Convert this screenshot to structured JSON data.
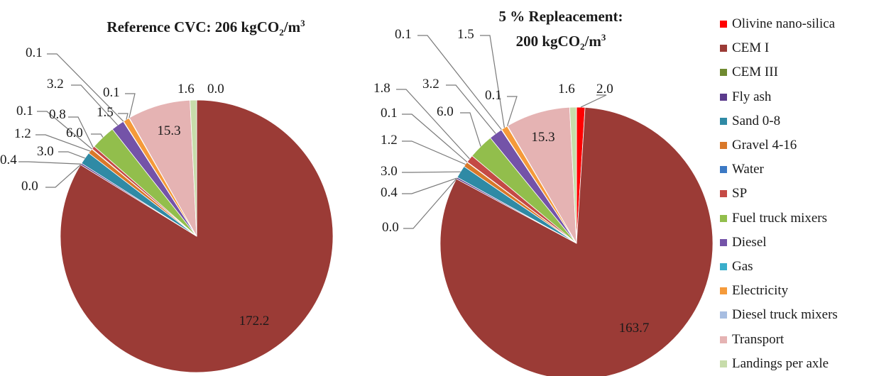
{
  "legend": [
    {
      "label": "Olivine nano-silica",
      "color": "#ff0000"
    },
    {
      "label": "CEM I",
      "color": "#9b3b36"
    },
    {
      "label": "CEM III",
      "color": "#6f8a30"
    },
    {
      "label": "Fly ash",
      "color": "#5b3b8c"
    },
    {
      "label": "Sand 0-8",
      "color": "#2f8aa5"
    },
    {
      "label": "Gravel 4-16",
      "color": "#d9782a"
    },
    {
      "label": "Water",
      "color": "#3c79c4"
    },
    {
      "label": "SP",
      "color": "#c44a45"
    },
    {
      "label": "Fuel truck mixers",
      "color": "#92be4c"
    },
    {
      "label": "Diesel",
      "color": "#7453a8"
    },
    {
      "label": "Gas",
      "color": "#3aaecb"
    },
    {
      "label": "Electricity",
      "color": "#f59a3a"
    },
    {
      "label": "Diesel truck mixers",
      "color": "#a7bde1"
    },
    {
      "label": "Transport",
      "color": "#e5b3b3"
    },
    {
      "label": "Landings per axle",
      "color": "#c7dcaa"
    }
  ],
  "chart_data": [
    {
      "type": "pie",
      "title_main": "Reference CVC: 206 kgCO",
      "title_sub": "2",
      "title_unit": "/m",
      "title_sup": "3",
      "categories": [
        "Olivine nano-silica",
        "CEM I",
        "CEM III",
        "Fly ash",
        "Sand 0-8",
        "Gravel 4-16",
        "Water",
        "SP",
        "Fuel truck mixers",
        "Diesel",
        "Gas",
        "Electricity",
        "Diesel truck mixers",
        "Transport",
        "Landings per axle"
      ],
      "values": [
        0.0,
        172.2,
        0.0,
        0.4,
        3.0,
        1.2,
        0.1,
        0.8,
        6.0,
        3.2,
        0.1,
        1.5,
        0.1,
        15.3,
        1.6
      ],
      "labels": [
        "0.0",
        "172.2",
        "0.0",
        "0.4",
        "3.0",
        "1.2",
        "0.1",
        "0.8",
        "6.0",
        "3.2",
        "0.1",
        "1.5",
        "0.1",
        "15.3",
        "1.6"
      ],
      "total": "206"
    },
    {
      "type": "pie",
      "title_line1": "5 % Repleacement:",
      "title_main": "200 kgCO",
      "title_sub": "2",
      "title_unit": "/m",
      "title_sup": "3",
      "categories": [
        "Olivine nano-silica",
        "CEM I",
        "CEM III",
        "Fly ash",
        "Sand 0-8",
        "Gravel 4-16",
        "Water",
        "SP",
        "Fuel truck mixers",
        "Diesel",
        "Gas",
        "Electricity",
        "Diesel truck mixers",
        "Transport",
        "Landings per axle"
      ],
      "values": [
        2.0,
        163.7,
        0.0,
        0.4,
        3.0,
        1.2,
        0.1,
        1.8,
        6.0,
        3.2,
        0.1,
        1.5,
        0.1,
        15.3,
        1.6
      ],
      "labels": [
        "2.0",
        "163.7",
        "0.0",
        "0.4",
        "3.0",
        "1.2",
        "0.1",
        "1.8",
        "6.0",
        "3.2",
        "0.1",
        "1.5",
        "0.1",
        "15.3",
        "1.6"
      ],
      "total": "200"
    }
  ]
}
